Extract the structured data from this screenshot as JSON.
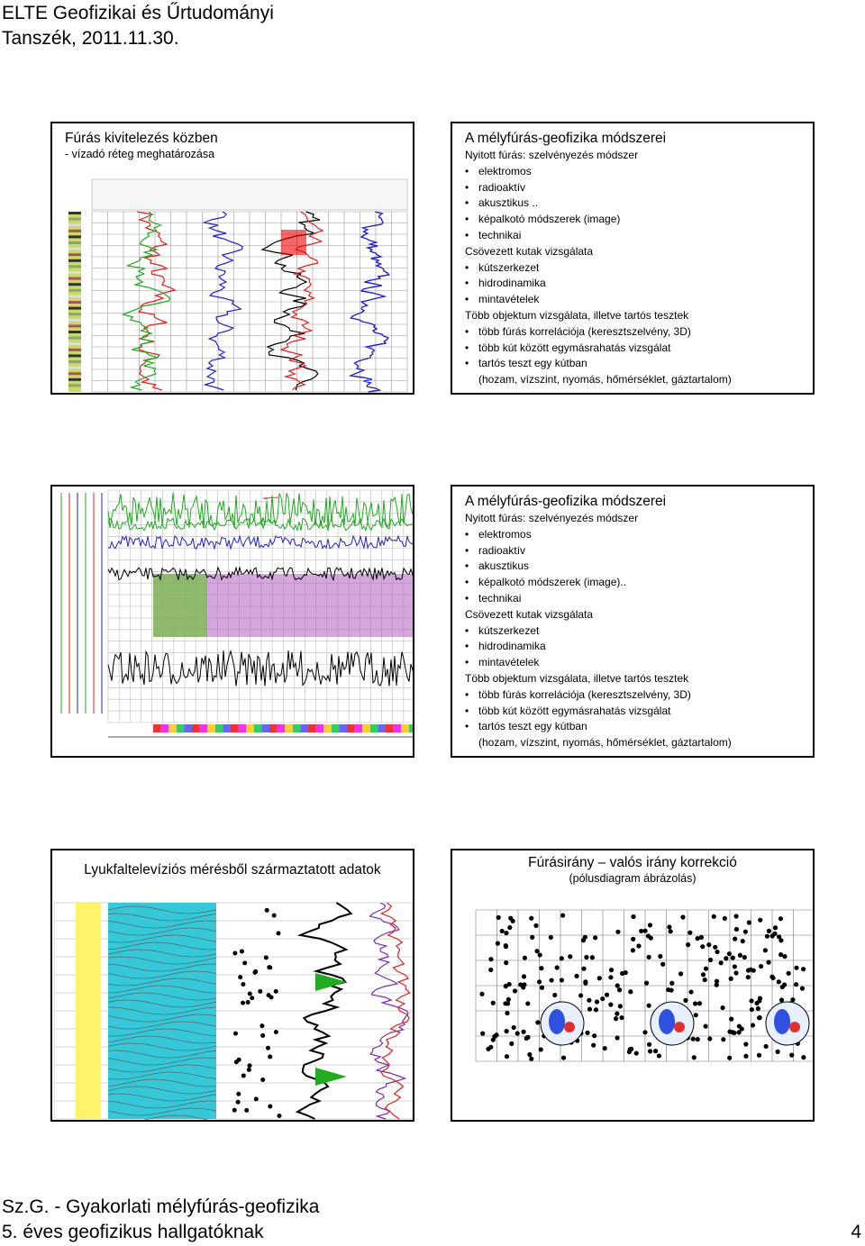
{
  "header": {
    "line1": "ELTE Geofizikai és Űrtudományi",
    "line2": "Tanszék, 2011.11.30."
  },
  "footer": {
    "line1": "Sz.G. - Gyakorlati mélyfúrás-geofizika",
    "line2": "5. éves geofizikus hallgatóknak",
    "page": "4"
  },
  "slides": [
    {
      "title": "Fúrás kivitelezés közben",
      "subtitle": "- vízadó réteg meghatározása"
    },
    {
      "title": "A mélyfúrás-geofizika módszerei",
      "lines": [
        {
          "kind": "heading",
          "text": "Nyitott fúrás: szelvényezés módszer"
        },
        {
          "kind": "bullet",
          "text": "elektromos"
        },
        {
          "kind": "bullet",
          "text": "radioaktív"
        },
        {
          "kind": "bullet",
          "text": "akusztikus .."
        },
        {
          "kind": "bullet",
          "text": "képalkotó módszerek (image)"
        },
        {
          "kind": "bullet",
          "text": "technikai"
        },
        {
          "kind": "heading",
          "text": "Csövezett kutak vizsgálata"
        },
        {
          "kind": "bullet",
          "text": "kútszerkezet"
        },
        {
          "kind": "bullet",
          "text": "hidrodinamika"
        },
        {
          "kind": "bullet",
          "text": "mintavételek"
        },
        {
          "kind": "heading",
          "text": "Több objektum vizsgálata, illetve tartós tesztek"
        },
        {
          "kind": "bullet",
          "text": "több fúrás korrelációja (keresztszelvény, 3D)"
        },
        {
          "kind": "bullet",
          "text": "több kút között egymásrahatás vizsgálat"
        },
        {
          "kind": "bullet",
          "text": "tartós teszt egy kútban"
        },
        {
          "kind": "cont",
          "text": "(hozam, vízszint, nyomás, hőmérséklet, gáztartalom)"
        }
      ]
    },
    {},
    {
      "title": "A mélyfúrás-geofizika módszerei",
      "lines": [
        {
          "kind": "heading",
          "text": "Nyitott fúrás: szelvényezés módszer"
        },
        {
          "kind": "bullet",
          "text": "elektromos"
        },
        {
          "kind": "bullet",
          "text": "radioaktív"
        },
        {
          "kind": "bullet",
          "text": "akusztikus"
        },
        {
          "kind": "bullet",
          "text": "képalkotó módszerek (image).."
        },
        {
          "kind": "bullet",
          "text": "technikai"
        },
        {
          "kind": "heading",
          "text": "Csövezett kutak vizsgálata"
        },
        {
          "kind": "bullet",
          "text": "kútszerkezet"
        },
        {
          "kind": "bullet",
          "text": "hidrodinamika"
        },
        {
          "kind": "bullet",
          "text": "mintavételek"
        },
        {
          "kind": "heading",
          "text": "Több objektum vizsgálata, illetve tartós tesztek"
        },
        {
          "kind": "bullet",
          "text": "több fúrás korrelációja (keresztszelvény, 3D)"
        },
        {
          "kind": "bullet",
          "text": "több kút között egymásrahatás vizsgálat"
        },
        {
          "kind": "bullet",
          "text": "tartós teszt egy kútban"
        },
        {
          "kind": "cont",
          "text": "(hozam, vízszint, nyomás, hőmérséklet, gáztartalom)"
        }
      ]
    },
    {
      "title": "Lyukfaltelevíziós mérésből származtatott adatok"
    },
    {
      "title": "Fúrásirány – valós irány korrekció",
      "subtitle": "(pólusdiagram ábrázolás)"
    }
  ]
}
